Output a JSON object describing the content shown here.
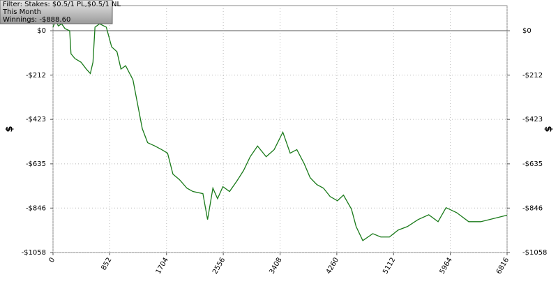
{
  "chart_data": {
    "type": "line",
    "annotations": [
      "Filter: Stakes: $0.5/1 PL,$0.5/1 NL",
      "This Month",
      "Winnings: -$888.60"
    ],
    "y_label": "$",
    "x": [
      0,
      40,
      80,
      130,
      180,
      250,
      270,
      330,
      420,
      500,
      560,
      600,
      630,
      700,
      800,
      880,
      960,
      1020,
      1090,
      1200,
      1260,
      1340,
      1420,
      1530,
      1630,
      1720,
      1800,
      1900,
      2010,
      2100,
      2250,
      2320,
      2400,
      2470,
      2550,
      2650,
      2760,
      2860,
      2960,
      3070,
      3200,
      3320,
      3450,
      3560,
      3660,
      3770,
      3860,
      3960,
      4060,
      4160,
      4270,
      4360,
      4480,
      4550,
      4650,
      4800,
      4920,
      5050,
      5180,
      5320,
      5480,
      5640,
      5780,
      5900,
      6060,
      6240,
      6420,
      6816
    ],
    "series": [
      {
        "color": "#1a7a1a",
        "values": [
          17,
          50,
          23,
          33,
          10,
          0,
          -110,
          -133,
          -150,
          -183,
          -204,
          -150,
          17,
          33,
          17,
          -77,
          -100,
          -183,
          -167,
          -234,
          -334,
          -467,
          -534,
          -550,
          -567,
          -584,
          -684,
          -711,
          -751,
          -767,
          -777,
          -901,
          -751,
          -801,
          -744,
          -767,
          -717,
          -667,
          -601,
          -550,
          -601,
          -567,
          -484,
          -584,
          -567,
          -634,
          -701,
          -734,
          -751,
          -791,
          -811,
          -784,
          -851,
          -934,
          -1001,
          -968,
          -984,
          -984,
          -951,
          -934,
          -901,
          -878,
          -911,
          -844,
          -868,
          -911,
          -911,
          -880
        ]
      }
    ],
    "xlim": [
      0,
      6816
    ],
    "xticks": [
      0,
      852,
      1704,
      2556,
      3408,
      4260,
      5112,
      5964,
      6816
    ],
    "ylim": [
      -1058,
      120
    ],
    "yticks": [
      {
        "value": 0,
        "label": "$0"
      },
      {
        "value": -212,
        "label": "-$212"
      },
      {
        "value": -423,
        "label": "-$423"
      },
      {
        "value": -635,
        "label": "-$635"
      },
      {
        "value": -846,
        "label": "-$846"
      },
      {
        "value": -1058,
        "label": "-$1058"
      }
    ],
    "grid": true
  }
}
